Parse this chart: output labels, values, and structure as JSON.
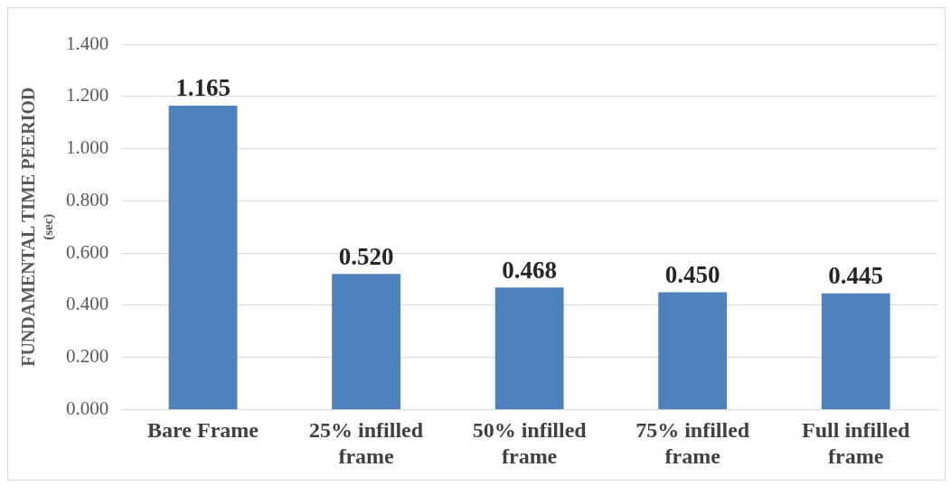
{
  "chart_data": {
    "type": "bar",
    "ylabel": "FUNDAMENTAL TIME PEERIOD\n(sec)",
    "categories": [
      "Bare Frame",
      "25% infilled frame",
      "50% infilled frame",
      "75% infilled frame",
      "Full infilled frame"
    ],
    "values": [
      1.165,
      0.52,
      0.468,
      0.45,
      0.445
    ],
    "color": "#4f81bd",
    "ylim": [
      0,
      1.4
    ],
    "yticks": [
      {
        "value": 0,
        "label": "0.000"
      },
      {
        "value": 0.2,
        "label": "0.200"
      },
      {
        "value": 0.4,
        "label": "0.400"
      },
      {
        "value": 0.6,
        "label": "0.600"
      },
      {
        "value": 0.8,
        "label": "0.800"
      },
      {
        "value": 1,
        "label": "1.000"
      },
      {
        "value": 1.2,
        "label": "1.200"
      },
      {
        "value": 1.4,
        "label": "1.400"
      }
    ],
    "value_labels": [
      "1.165",
      "0.520",
      "0.468",
      "0.450",
      "0.445"
    ],
    "grid": "y"
  }
}
